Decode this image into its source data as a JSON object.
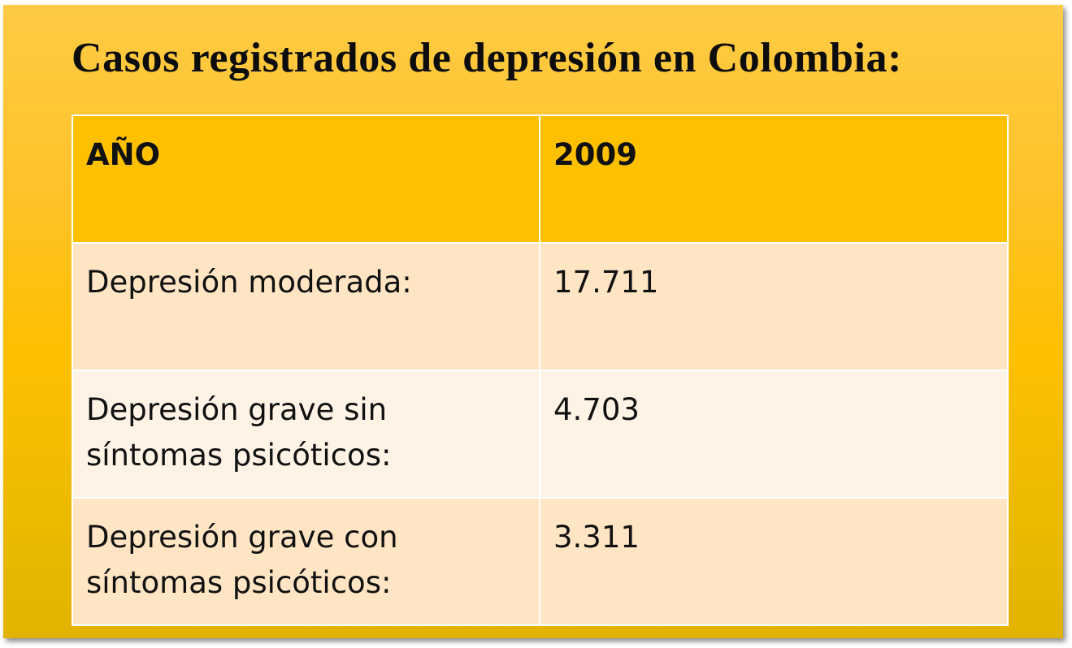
{
  "slide": {
    "title": "Casos registrados de depresión en Colombia:"
  },
  "table": {
    "header": {
      "label": "AÑO",
      "year": "2009"
    },
    "rows": [
      {
        "label": "Depresión moderada:",
        "value": "17.711"
      },
      {
        "label": "Depresión grave sin síntomas psicóticos:",
        "value": "4.703"
      },
      {
        "label": "Depresión grave con síntomas psicóticos:",
        "value": "3.311"
      }
    ]
  },
  "colors": {
    "background_top": "#ffcb45",
    "background_bottom": "#e2b300",
    "header_fill": "#ffc000",
    "row_fill_dark": "#ffe5c4",
    "row_fill_light": "#fff3e6",
    "cell_border": "#ffffff"
  }
}
